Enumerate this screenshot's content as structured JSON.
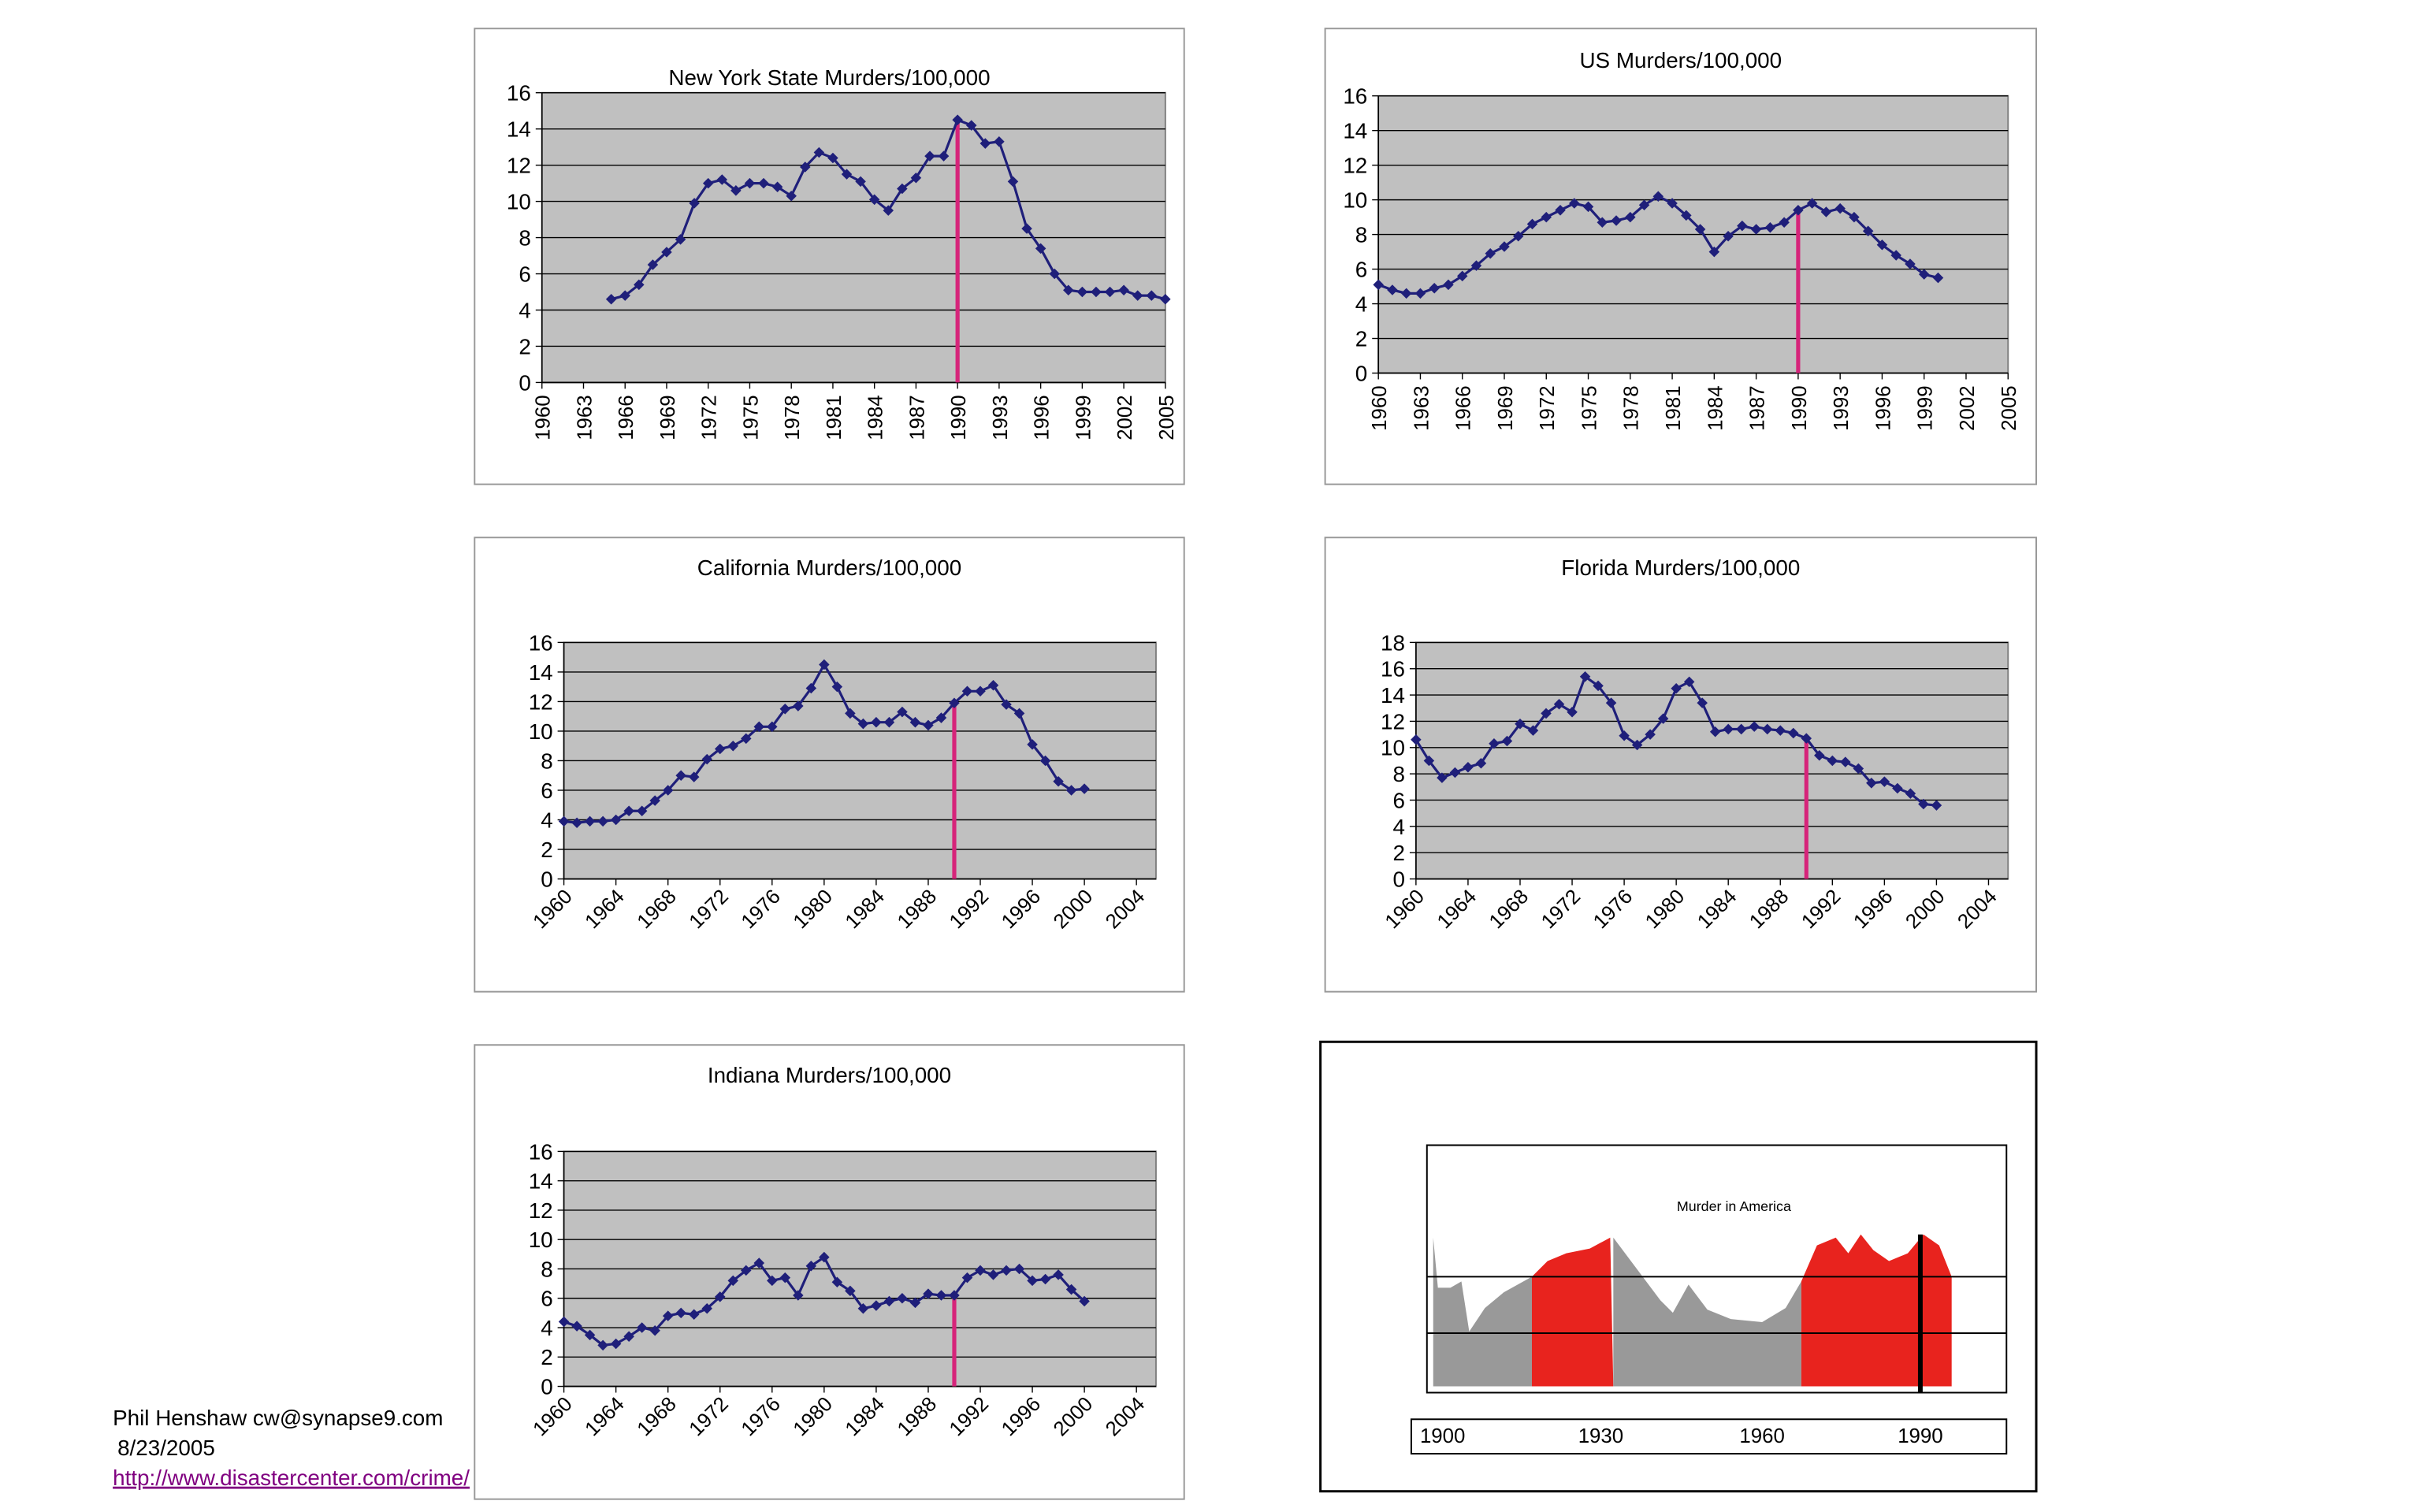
{
  "chart_data": [
    {
      "type": "line",
      "title": "New York State Murders/100,000",
      "x": [
        1965,
        1966,
        1967,
        1968,
        1969,
        1970,
        1971,
        1972,
        1973,
        1974,
        1975,
        1976,
        1977,
        1978,
        1979,
        1980,
        1981,
        1982,
        1983,
        1984,
        1985,
        1986,
        1987,
        1988,
        1989,
        1990,
        1991,
        1992,
        1993,
        1994,
        1995,
        1996,
        1997,
        1998,
        1999,
        2000,
        2001,
        2002,
        2003,
        2004,
        2005
      ],
      "values": [
        4.6,
        4.8,
        5.4,
        6.5,
        7.2,
        7.9,
        9.9,
        11.0,
        11.2,
        10.6,
        11.0,
        11.0,
        10.8,
        10.3,
        11.9,
        12.7,
        12.4,
        11.5,
        11.1,
        10.1,
        9.5,
        10.7,
        11.3,
        12.5,
        12.5,
        14.5,
        14.2,
        13.2,
        13.3,
        11.1,
        8.5,
        7.4,
        6.0,
        5.1,
        5.0,
        5.0,
        5.0,
        5.1,
        4.8,
        4.8,
        4.6
      ],
      "color": "#1f1f7a",
      "xlim": [
        1960,
        2005
      ],
      "xticks": [
        1960,
        1963,
        1966,
        1969,
        1972,
        1975,
        1978,
        1981,
        1984,
        1987,
        1990,
        1993,
        1996,
        1999,
        2002,
        2005
      ],
      "ylim": [
        0,
        16
      ],
      "yticks": [
        0,
        2,
        4,
        6,
        8,
        10,
        12,
        14,
        16
      ],
      "grid": true,
      "vline": {
        "x": 1990,
        "color": "#d6247a"
      }
    },
    {
      "type": "line",
      "title": "US Murders/100,000",
      "x": [
        1960,
        1961,
        1962,
        1963,
        1964,
        1965,
        1966,
        1967,
        1968,
        1969,
        1970,
        1971,
        1972,
        1973,
        1974,
        1975,
        1976,
        1977,
        1978,
        1979,
        1980,
        1981,
        1982,
        1983,
        1984,
        1985,
        1986,
        1987,
        1988,
        1989,
        1990,
        1991,
        1992,
        1993,
        1994,
        1995,
        1996,
        1997,
        1998,
        1999,
        2000
      ],
      "values": [
        5.1,
        4.8,
        4.6,
        4.6,
        4.9,
        5.1,
        5.6,
        6.2,
        6.9,
        7.3,
        7.9,
        8.6,
        9.0,
        9.4,
        9.8,
        9.6,
        8.7,
        8.8,
        9.0,
        9.7,
        10.2,
        9.8,
        9.1,
        8.3,
        7.0,
        7.9,
        8.5,
        8.3,
        8.4,
        8.7,
        9.4,
        9.8,
        9.3,
        9.5,
        9.0,
        8.2,
        7.4,
        6.8,
        6.3,
        5.7,
        5.5
      ],
      "color": "#1f1f7a",
      "xlim": [
        1960,
        2005
      ],
      "xticks": [
        1960,
        1963,
        1966,
        1969,
        1972,
        1975,
        1978,
        1981,
        1984,
        1987,
        1990,
        1993,
        1996,
        1999,
        2002,
        2005
      ],
      "ylim": [
        0,
        16
      ],
      "yticks": [
        0,
        2,
        4,
        6,
        8,
        10,
        12,
        14,
        16
      ],
      "grid": true,
      "vline": {
        "x": 1990,
        "color": "#d6247a"
      }
    },
    {
      "type": "line",
      "title": "California Murders/100,000",
      "x": [
        1960,
        1961,
        1962,
        1963,
        1964,
        1965,
        1966,
        1967,
        1968,
        1969,
        1970,
        1971,
        1972,
        1973,
        1974,
        1975,
        1976,
        1977,
        1978,
        1979,
        1980,
        1981,
        1982,
        1983,
        1984,
        1985,
        1986,
        1987,
        1988,
        1989,
        1990,
        1991,
        1992,
        1993,
        1994,
        1995,
        1996,
        1997,
        1998,
        1999,
        2000
      ],
      "values": [
        3.9,
        3.8,
        3.9,
        3.9,
        4.0,
        4.6,
        4.6,
        5.3,
        6.0,
        7.0,
        6.9,
        8.1,
        8.8,
        9.0,
        9.5,
        10.3,
        10.3,
        11.5,
        11.7,
        12.9,
        14.5,
        13.0,
        11.2,
        10.5,
        10.6,
        10.6,
        11.3,
        10.6,
        10.4,
        10.9,
        11.9,
        12.7,
        12.7,
        13.1,
        11.8,
        11.2,
        9.1,
        8.0,
        6.6,
        6.0,
        6.1
      ],
      "color": "#1f1f7a",
      "xlim": [
        1960,
        2005.5
      ],
      "xticks": [
        1960,
        1964,
        1968,
        1972,
        1976,
        1980,
        1984,
        1988,
        1992,
        1996,
        2000,
        2004
      ],
      "ylim": [
        0,
        16
      ],
      "yticks": [
        0,
        2,
        4,
        6,
        8,
        10,
        12,
        14,
        16
      ],
      "grid": true,
      "vline": {
        "x": 1990,
        "color": "#d6247a"
      }
    },
    {
      "type": "line",
      "title": "Florida Murders/100,000",
      "x": [
        1960,
        1961,
        1962,
        1963,
        1964,
        1965,
        1966,
        1967,
        1968,
        1969,
        1970,
        1971,
        1972,
        1973,
        1974,
        1975,
        1976,
        1977,
        1978,
        1979,
        1980,
        1981,
        1982,
        1983,
        1984,
        1985,
        1986,
        1987,
        1988,
        1989,
        1990,
        1991,
        1992,
        1993,
        1994,
        1995,
        1996,
        1997,
        1998,
        1999,
        2000
      ],
      "values": [
        10.6,
        9.0,
        7.7,
        8.1,
        8.5,
        8.8,
        10.3,
        10.5,
        11.8,
        11.3,
        12.6,
        13.3,
        12.7,
        15.4,
        14.7,
        13.4,
        10.9,
        10.2,
        11.0,
        12.2,
        14.5,
        15.0,
        13.4,
        11.2,
        11.4,
        11.4,
        11.6,
        11.4,
        11.3,
        11.1,
        10.7,
        9.4,
        9.0,
        8.9,
        8.4,
        7.3,
        7.4,
        6.9,
        6.5,
        5.7,
        5.6
      ],
      "color": "#1f1f7a",
      "xlim": [
        1960,
        2005.5
      ],
      "xticks": [
        1960,
        1964,
        1968,
        1972,
        1976,
        1980,
        1984,
        1988,
        1992,
        1996,
        2000,
        2004
      ],
      "ylim": [
        0,
        18
      ],
      "yticks": [
        0,
        2,
        4,
        6,
        8,
        10,
        12,
        14,
        16,
        18
      ],
      "grid": true,
      "vline": {
        "x": 1990,
        "color": "#d6247a"
      }
    },
    {
      "type": "line",
      "title": "Indiana Murders/100,000",
      "x": [
        1960,
        1961,
        1962,
        1963,
        1964,
        1965,
        1966,
        1967,
        1968,
        1969,
        1970,
        1971,
        1972,
        1973,
        1974,
        1975,
        1976,
        1977,
        1978,
        1979,
        1980,
        1981,
        1982,
        1983,
        1984,
        1985,
        1986,
        1987,
        1988,
        1989,
        1990,
        1991,
        1992,
        1993,
        1994,
        1995,
        1996,
        1997,
        1998,
        1999,
        2000
      ],
      "values": [
        4.4,
        4.1,
        3.5,
        2.8,
        2.9,
        3.4,
        4.0,
        3.8,
        4.8,
        5.0,
        4.9,
        5.3,
        6.1,
        7.2,
        7.9,
        8.4,
        7.2,
        7.4,
        6.2,
        8.2,
        8.8,
        7.1,
        6.5,
        5.3,
        5.5,
        5.8,
        6.0,
        5.7,
        6.3,
        6.2,
        6.2,
        7.4,
        7.9,
        7.6,
        7.9,
        8.0,
        7.2,
        7.3,
        7.6,
        6.6,
        5.8
      ],
      "color": "#1f1f7a",
      "xlim": [
        1960,
        2005.5
      ],
      "xticks": [
        1960,
        1964,
        1968,
        1972,
        1976,
        1980,
        1984,
        1988,
        1992,
        1996,
        2000,
        2004
      ],
      "ylim": [
        0,
        16
      ],
      "yticks": [
        0,
        2,
        4,
        6,
        8,
        10,
        12,
        14,
        16
      ],
      "grid": true,
      "vline": {
        "x": 1990,
        "color": "#d6247a"
      }
    }
  ],
  "inset": {
    "title": "Murder in America",
    "labels": [
      "1900",
      "1930",
      "1960",
      "1990"
    ]
  },
  "footer": {
    "author": "Phil Henshaw cw@synapse9.com",
    "date": "8/23/2005",
    "link": "http://www.disastercenter.com/crime/"
  }
}
